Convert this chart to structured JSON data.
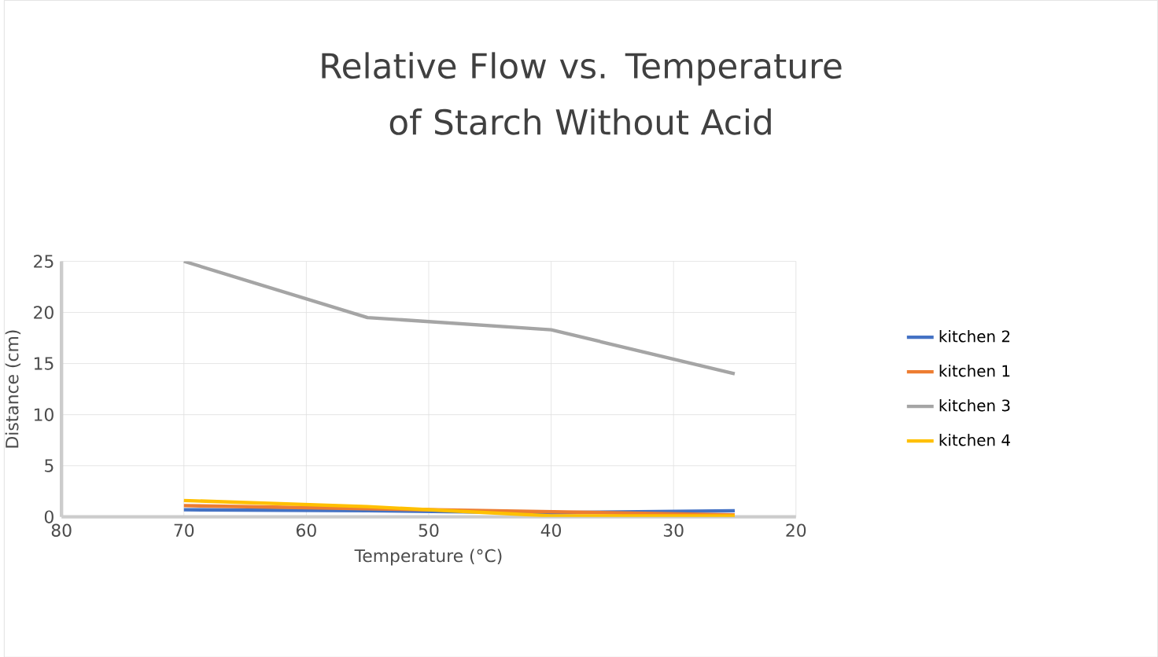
{
  "chart_data": {
    "type": "line",
    "title": "Relative Flow vs. Temperature of Starch Without  Acid",
    "xlabel": "Temperature  (°C)",
    "ylabel": "Distance (cm)",
    "x": [
      70,
      55,
      40,
      25
    ],
    "series": [
      {
        "name": "kitchen 2",
        "color": "#4472c4",
        "values": [
          0.7,
          0.6,
          0.4,
          0.6
        ]
      },
      {
        "name": "kitchen 1",
        "color": "#ed7d31",
        "values": [
          1.1,
          0.8,
          0.5,
          0.2
        ]
      },
      {
        "name": "kitchen 3",
        "color": "#a5a5a5",
        "values": [
          25,
          19.5,
          18.3,
          14
        ]
      },
      {
        "name": "kitchen 4",
        "color": "#ffc000",
        "values": [
          1.6,
          1.0,
          0.1,
          0.1
        ]
      }
    ],
    "xlim": [
      80,
      20
    ],
    "xticks": [
      80,
      70,
      60,
      50,
      40,
      30,
      20
    ],
    "ylim": [
      0,
      25
    ],
    "yticks": [
      0,
      5,
      10,
      15,
      20,
      25
    ],
    "grid": true,
    "legend": "right",
    "marker": "none",
    "line_style": "solid"
  }
}
